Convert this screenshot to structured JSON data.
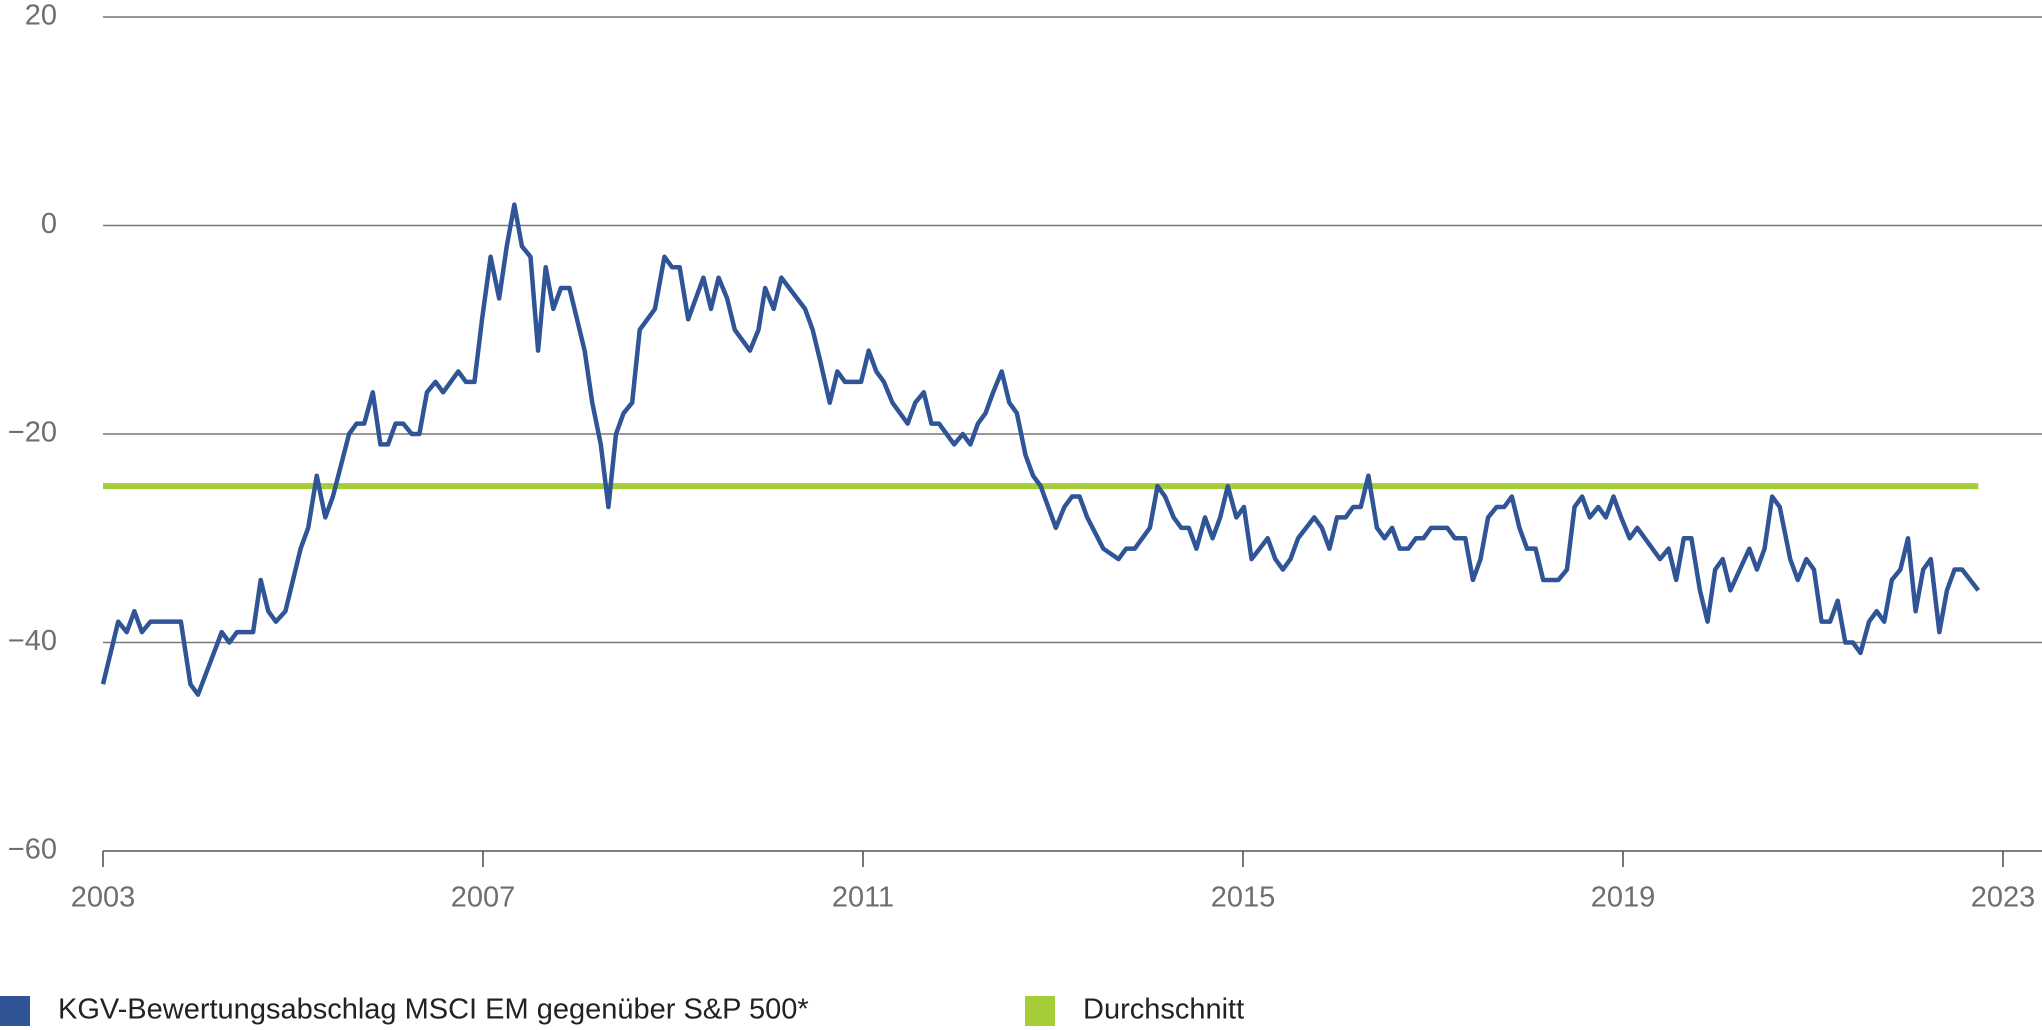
{
  "chart_data": {
    "type": "line",
    "xlim": [
      2003,
      2023
    ],
    "xticks": [
      2003,
      2007,
      2011,
      2015,
      2019,
      2023
    ],
    "ylim": [
      -60,
      20
    ],
    "yticks": [
      {
        "value": -60,
        "label": "−60"
      },
      {
        "value": -40,
        "label": "−40"
      },
      {
        "value": -20,
        "label": "−20"
      },
      0,
      20
    ],
    "grid": true,
    "series": [
      {
        "name": "KGV-Bewertungsabschlag MSCI EM gegenüber S&P 500*",
        "color": "#2f5597",
        "x": [
          2003.0,
          2003.16,
          2003.25,
          2003.33,
          2003.41,
          2003.5,
          2003.82,
          2003.92,
          2004.0,
          2004.25,
          2004.33,
          2004.41,
          2004.58,
          2004.66,
          2004.74,
          2004.82,
          2004.92,
          2005.08,
          2005.16,
          2005.25,
          2005.34,
          2005.42,
          2005.59,
          2005.67,
          2005.75,
          2005.84,
          2005.92,
          2006.0,
          2006.08,
          2006.16,
          2006.25,
          2006.33,
          2006.41,
          2006.5,
          2006.58,
          2006.74,
          2006.82,
          2006.91,
          2006.99,
          2007.08,
          2007.17,
          2007.25,
          2007.33,
          2007.41,
          2007.5,
          2007.58,
          2007.66,
          2007.74,
          2007.82,
          2007.91,
          2008.07,
          2008.15,
          2008.24,
          2008.32,
          2008.4,
          2008.48,
          2008.57,
          2008.65,
          2008.81,
          2008.91,
          2008.99,
          2009.07,
          2009.16,
          2009.24,
          2009.32,
          2009.4,
          2009.48,
          2009.57,
          2009.65,
          2009.81,
          2009.9,
          2009.97,
          2010.06,
          2010.14,
          2010.39,
          2010.47,
          2010.55,
          2010.65,
          2010.73,
          2010.81,
          2010.98,
          2011.06,
          2011.14,
          2011.22,
          2011.31,
          2011.47,
          2011.55,
          2011.64,
          2011.72,
          2011.8,
          2011.88,
          2011.96,
          2012.05,
          2012.13,
          2012.21,
          2012.29,
          2012.37,
          2012.46,
          2012.54,
          2012.62,
          2012.71,
          2012.79,
          2012.87,
          2012.95,
          2013.03,
          2013.12,
          2013.2,
          2013.28,
          2013.36,
          2013.53,
          2013.69,
          2013.77,
          2013.86,
          2013.94,
          2014.02,
          2014.1,
          2014.18,
          2014.27,
          2014.35,
          2014.43,
          2014.51,
          2014.6,
          2014.68,
          2014.76,
          2014.84,
          2014.93,
          2015.01,
          2015.09,
          2015.26,
          2015.34,
          2015.42,
          2015.5,
          2015.58,
          2015.75,
          2015.83,
          2015.91,
          2015.99,
          2016.08,
          2016.16,
          2016.24,
          2016.32,
          2016.41,
          2016.49,
          2016.57,
          2016.65,
          2016.74,
          2016.82,
          2016.9,
          2016.98,
          2017.15,
          2017.23,
          2017.34,
          2017.42,
          2017.5,
          2017.58,
          2017.67,
          2017.75,
          2017.83,
          2017.91,
          2017.99,
          2018.08,
          2018.16,
          2018.32,
          2018.41,
          2018.49,
          2018.57,
          2018.65,
          2018.74,
          2018.82,
          2018.9,
          2018.98,
          2019.07,
          2019.15,
          2019.39,
          2019.48,
          2019.56,
          2019.64,
          2019.72,
          2019.81,
          2019.89,
          2019.97,
          2020.05,
          2020.13,
          2020.33,
          2020.41,
          2020.49,
          2020.57,
          2020.65,
          2020.76,
          2020.84,
          2020.93,
          2021.01,
          2021.09,
          2021.18,
          2021.26,
          2021.34,
          2021.42,
          2021.5,
          2021.59,
          2021.67,
          2021.75,
          2021.83,
          2021.92,
          2022.0,
          2022.08,
          2022.16,
          2022.24,
          2022.33,
          2022.41,
          2022.49,
          2022.57,
          2022.74
        ],
        "values": [
          -44,
          -38,
          -39,
          -37,
          -39,
          -38,
          -38,
          -44,
          -45,
          -39,
          -40,
          -39,
          -39,
          -34,
          -37,
          -38,
          -37,
          -31,
          -29,
          -24,
          -28,
          -26,
          -20,
          -19,
          -19,
          -16,
          -21,
          -21,
          -19,
          -19,
          -20,
          -20,
          -16,
          -15,
          -16,
          -14,
          -15,
          -15,
          -9,
          -3,
          -7,
          -2,
          2,
          -2,
          -3,
          -12,
          -4,
          -8,
          -6,
          -6,
          -12,
          -17,
          -21,
          -27,
          -20,
          -18,
          -17,
          -10,
          -8,
          -3,
          -4,
          -4,
          -9,
          -7,
          -5,
          -8,
          -5,
          -7,
          -10,
          -12,
          -10,
          -6,
          -8,
          -5,
          -8,
          -10,
          -13,
          -17,
          -14,
          -15,
          -15,
          -12,
          -14,
          -15,
          -17,
          -19,
          -17,
          -16,
          -19,
          -19,
          -20,
          -21,
          -20,
          -21,
          -19,
          -18,
          -16,
          -14,
          -17,
          -18,
          -22,
          -24,
          -25,
          -27,
          -29,
          -27,
          -26,
          -26,
          -28,
          -31,
          -32,
          -31,
          -31,
          -30,
          -29,
          -25,
          -26,
          -28,
          -29,
          -29,
          -31,
          -28,
          -30,
          -28,
          -25,
          -28,
          -27,
          -32,
          -30,
          -32,
          -33,
          -32,
          -30,
          -28,
          -29,
          -31,
          -28,
          -28,
          -27,
          -27,
          -24,
          -29,
          -30,
          -29,
          -31,
          -31,
          -30,
          -30,
          -29,
          -29,
          -30,
          -30,
          -34,
          -32,
          -28,
          -27,
          -27,
          -26,
          -29,
          -31,
          -31,
          -34,
          -34,
          -33,
          -27,
          -26,
          -28,
          -27,
          -28,
          -26,
          -28,
          -30,
          -29,
          -32,
          -31,
          -34,
          -30,
          -30,
          -35,
          -38,
          -33,
          -32,
          -35,
          -31,
          -33,
          -31,
          -26,
          -27,
          -32,
          -34,
          -32,
          -33,
          -38,
          -38,
          -36,
          -40,
          -40,
          -41,
          -38,
          -37,
          -38,
          -34,
          -33,
          -30,
          -37,
          -33,
          -32,
          -39,
          -35,
          -33,
          -33,
          -35
        ]
      },
      {
        "name": "Durchschnitt",
        "color": "#a5cd39",
        "x": [
          2003.0,
          2022.74
        ],
        "values": [
          -25,
          -25
        ]
      }
    ]
  }
}
